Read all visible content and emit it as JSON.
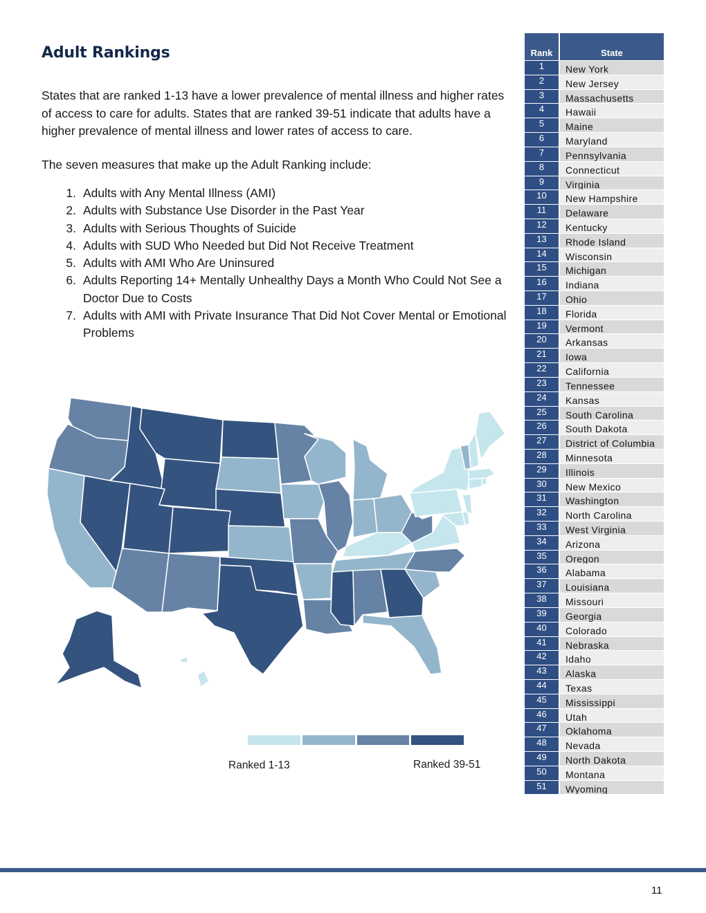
{
  "page": {
    "title": "Adult Rankings",
    "intro": "States that are ranked 1-13 have a lower prevalence of mental illness and higher rates of access to care for adults. States that are ranked 39-51 indicate that adults have a higher prevalence of mental illness and lower rates of access to care.",
    "lead": "The seven measures that make up the Adult Ranking include:",
    "page_number": "11"
  },
  "measures": [
    {
      "num": "1.",
      "text": "Adults with Any Mental Illness (AMI)"
    },
    {
      "num": "2.",
      "text": "Adults with Substance Use Disorder in the Past Year"
    },
    {
      "num": "3.",
      "text": "Adults with Serious Thoughts of Suicide"
    },
    {
      "num": "4.",
      "text": "Adults with SUD Who Needed but Did Not Receive Treatment"
    },
    {
      "num": "5.",
      "text": "Adults with AMI Who Are Uninsured"
    },
    {
      "num": "6.",
      "text": "Adults Reporting 14+ Mentally Unhealthy Days a Month Who Could Not See a Doctor Due to Costs"
    },
    {
      "num": "7.",
      "text": "Adults with AMI with Private Insurance That Did Not Cover Mental or Emotional Problems"
    }
  ],
  "legend": {
    "low_label": "Ranked 1-13",
    "high_label": "Ranked 39-51",
    "colors": [
      "#c5e6ec",
      "#94b6cc",
      "#6683a6",
      "#34537f"
    ]
  },
  "table": {
    "header_rank": "Rank",
    "header_state": "State",
    "rows": [
      {
        "rank": "1",
        "state": "New York"
      },
      {
        "rank": "2",
        "state": "New Jersey"
      },
      {
        "rank": "3",
        "state": "Massachusetts"
      },
      {
        "rank": "4",
        "state": "Hawaii"
      },
      {
        "rank": "5",
        "state": "Maine"
      },
      {
        "rank": "6",
        "state": "Maryland"
      },
      {
        "rank": "7",
        "state": "Pennsylvania"
      },
      {
        "rank": "8",
        "state": "Connecticut"
      },
      {
        "rank": "9",
        "state": "Virginia"
      },
      {
        "rank": "10",
        "state": "New Hampshire"
      },
      {
        "rank": "11",
        "state": "Delaware"
      },
      {
        "rank": "12",
        "state": "Kentucky"
      },
      {
        "rank": "13",
        "state": "Rhode Island"
      },
      {
        "rank": "14",
        "state": "Wisconsin"
      },
      {
        "rank": "15",
        "state": "Michigan"
      },
      {
        "rank": "16",
        "state": "Indiana"
      },
      {
        "rank": "17",
        "state": "Ohio"
      },
      {
        "rank": "18",
        "state": "Florida"
      },
      {
        "rank": "19",
        "state": "Vermont"
      },
      {
        "rank": "20",
        "state": "Arkansas"
      },
      {
        "rank": "21",
        "state": "Iowa"
      },
      {
        "rank": "22",
        "state": "California"
      },
      {
        "rank": "23",
        "state": "Tennessee"
      },
      {
        "rank": "24",
        "state": "Kansas"
      },
      {
        "rank": "25",
        "state": "South Carolina"
      },
      {
        "rank": "26",
        "state": "South Dakota"
      },
      {
        "rank": "27",
        "state": "District of Columbia"
      },
      {
        "rank": "28",
        "state": "Minnesota"
      },
      {
        "rank": "29",
        "state": "Illinois"
      },
      {
        "rank": "30",
        "state": "New Mexico"
      },
      {
        "rank": "31",
        "state": "Washington"
      },
      {
        "rank": "32",
        "state": "North Carolina"
      },
      {
        "rank": "33",
        "state": "West Virginia"
      },
      {
        "rank": "34",
        "state": "Arizona"
      },
      {
        "rank": "35",
        "state": "Oregon"
      },
      {
        "rank": "36",
        "state": "Alabama"
      },
      {
        "rank": "37",
        "state": "Louisiana"
      },
      {
        "rank": "38",
        "state": "Missouri"
      },
      {
        "rank": "39",
        "state": "Georgia"
      },
      {
        "rank": "40",
        "state": "Colorado"
      },
      {
        "rank": "41",
        "state": "Nebraska"
      },
      {
        "rank": "42",
        "state": "Idaho"
      },
      {
        "rank": "43",
        "state": "Alaska"
      },
      {
        "rank": "44",
        "state": "Texas"
      },
      {
        "rank": "45",
        "state": "Mississippi"
      },
      {
        "rank": "46",
        "state": "Utah"
      },
      {
        "rank": "47",
        "state": "Oklahoma"
      },
      {
        "rank": "48",
        "state": "Nevada"
      },
      {
        "rank": "49",
        "state": "North Dakota"
      },
      {
        "rank": "50",
        "state": "Montana"
      },
      {
        "rank": "51",
        "state": "Wyoming"
      }
    ]
  }
}
